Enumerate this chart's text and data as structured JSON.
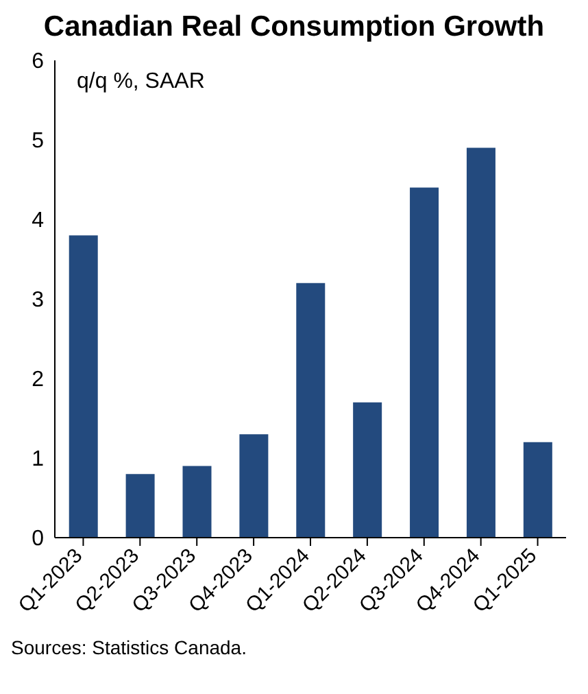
{
  "chart_data": {
    "type": "bar",
    "title": "Canadian Real Consumption Growth",
    "subtitle": "q/q %, SAAR",
    "categories": [
      "Q1-2023",
      "Q2-2023",
      "Q3-2023",
      "Q4-2023",
      "Q1-2024",
      "Q2-2024",
      "Q3-2024",
      "Q4-2024",
      "Q1-2025"
    ],
    "values": [
      3.8,
      0.8,
      0.9,
      1.3,
      3.2,
      1.7,
      4.4,
      4.9,
      1.2
    ],
    "color": "#234a7e",
    "ylim": [
      0,
      6
    ],
    "yticks": [
      0,
      1,
      2,
      3,
      4,
      5,
      6
    ],
    "annotations": [
      "Sources: Statistics Canada."
    ]
  }
}
